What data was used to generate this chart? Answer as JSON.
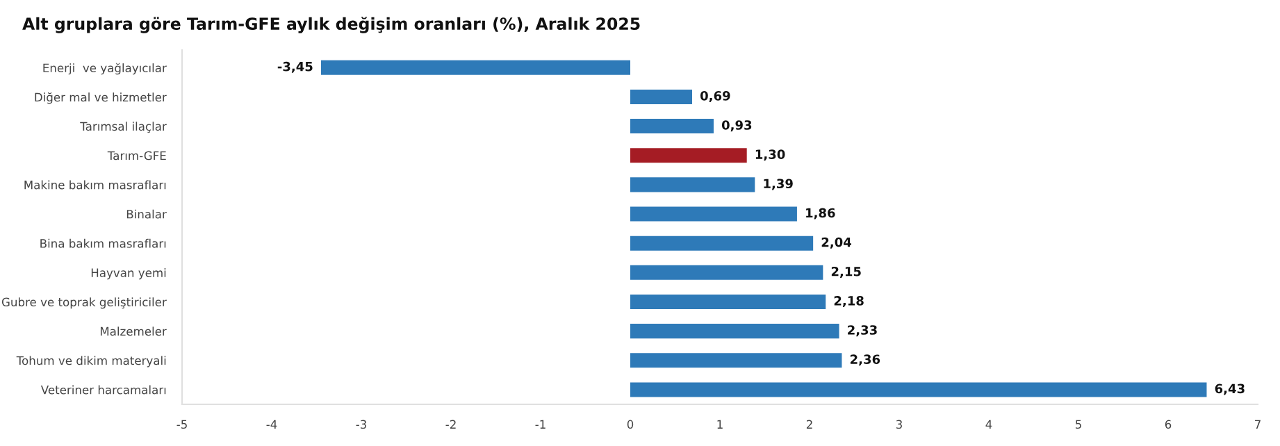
{
  "chart_data": {
    "type": "bar",
    "orientation": "horizontal",
    "title": "Alt gruplara göre Tarım-GFE aylık değişim oranları (%), Aralık 2025",
    "categories": [
      "Enerji  ve yağlayıcılar",
      "Diğer mal ve hizmetler",
      "Tarımsal ilaçlar",
      "Tarım-GFE",
      "Makine bakım masrafları",
      "Binalar",
      "Bina bakım masrafları",
      "Hayvan yemi",
      "Gubre ve toprak geliştiriciler",
      "Malzemeler",
      "Tohum ve dikim materyali",
      "Veteriner harcamaları"
    ],
    "values": [
      -3.45,
      0.69,
      0.93,
      1.3,
      1.39,
      1.86,
      2.04,
      2.15,
      2.18,
      2.33,
      2.36,
      6.43
    ],
    "value_labels": [
      "-3,45",
      "0,69",
      "0,93",
      "1,30",
      "1,39",
      "1,86",
      "2,04",
      "2,15",
      "2,18",
      "2,33",
      "2,36",
      "6,43"
    ],
    "colors": [
      "#2e7ab8",
      "#2e7ab8",
      "#2e7ab8",
      "#a51c24",
      "#2e7ab8",
      "#2e7ab8",
      "#2e7ab8",
      "#2e7ab8",
      "#2e7ab8",
      "#2e7ab8",
      "#2e7ab8",
      "#2e7ab8"
    ],
    "xlim": [
      -5,
      7
    ],
    "xticks": [
      -5,
      -4,
      -3,
      -2,
      -1,
      0,
      1,
      2,
      3,
      4,
      5,
      6,
      7
    ],
    "grid": false,
    "legend": false
  }
}
